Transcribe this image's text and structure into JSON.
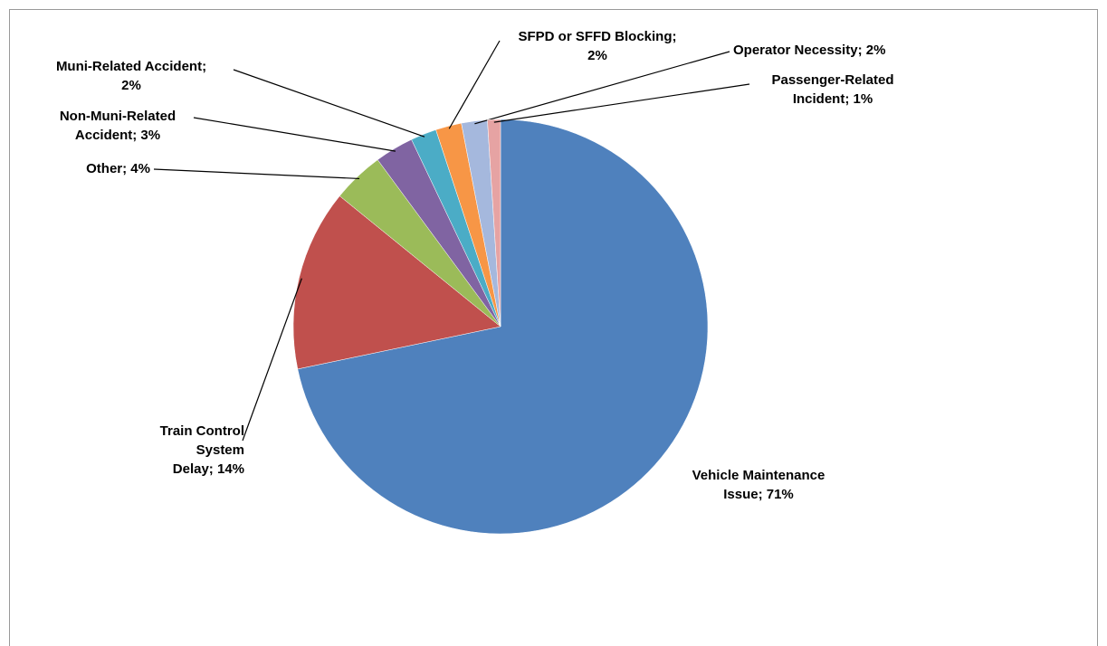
{
  "chart_data": {
    "type": "pie",
    "values": [
      71,
      14,
      4,
      3,
      2,
      2,
      2,
      1
    ],
    "value_labels": [
      "Vehicle Maintenance\nIssue; 71%",
      "Train Control System\nDelay; 14%",
      "Other; 4%",
      "Non-Muni-Related\nAccident; 3%",
      "Muni-Related Accident;\n2%",
      "SFPD or SFFD Blocking;\n2%",
      "Operator Necessity; 2%",
      "Passenger-Related\nIncident; 1%"
    ],
    "colors": [
      "#4f81bd",
      "#c0504d",
      "#9bbb59",
      "#8064a2",
      "#4bacc6",
      "#f79646",
      "#a5b8dd",
      "#e6a3a3"
    ]
  }
}
